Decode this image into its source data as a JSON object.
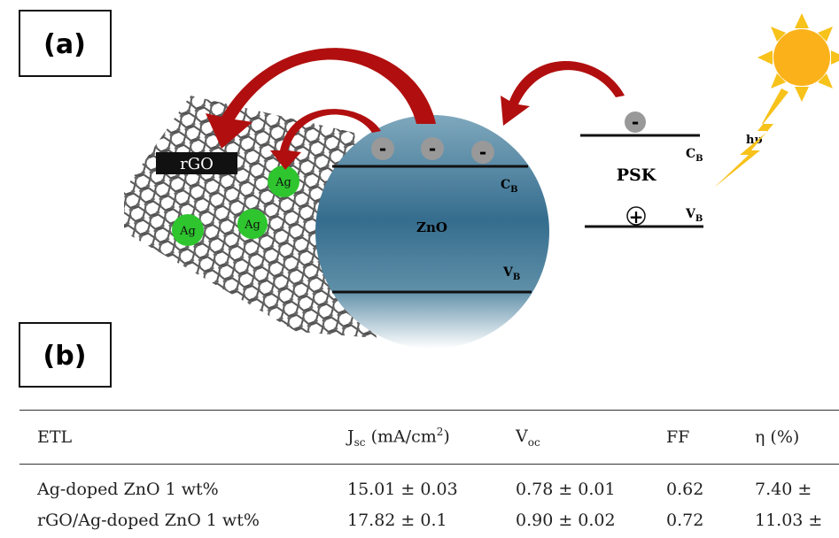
{
  "panel_a": {
    "label": "(a)"
  },
  "panel_b": {
    "label": "(b)"
  },
  "diagram": {
    "rgo": "rGO",
    "ag": [
      "Ag",
      "Ag",
      "Ag"
    ],
    "zno": "ZnO",
    "electrons": [
      "-",
      "-",
      "-"
    ],
    "zno_cb": {
      "base": "C",
      "sub": "B"
    },
    "zno_vb": {
      "base": "V",
      "sub": "B"
    },
    "psk": {
      "label": "PSK",
      "electron": "-",
      "hole": "+",
      "cb": {
        "base": "C",
        "sub": "B"
      },
      "vb": {
        "base": "V",
        "sub": "B"
      }
    },
    "light": "hυ"
  },
  "table": {
    "headers": [
      "ETL",
      {
        "base": "J",
        "sub": "sc",
        "unit": "(mA/cm",
        "sup": "2",
        "close": ")"
      },
      {
        "base": "V",
        "sub": "oc"
      },
      "FF",
      "η (%)"
    ],
    "rows": [
      [
        "Ag-doped ZnO 1 wt%",
        "15.01 ± 0.03",
        "0.78 ± 0.01",
        "0.62",
        "7.40 ±"
      ],
      [
        "rGO/Ag-doped ZnO 1 wt%",
        "17.82 ± 0.1",
        "0.90 ± 0.02",
        "0.72",
        "11.03 ±"
      ]
    ]
  }
}
